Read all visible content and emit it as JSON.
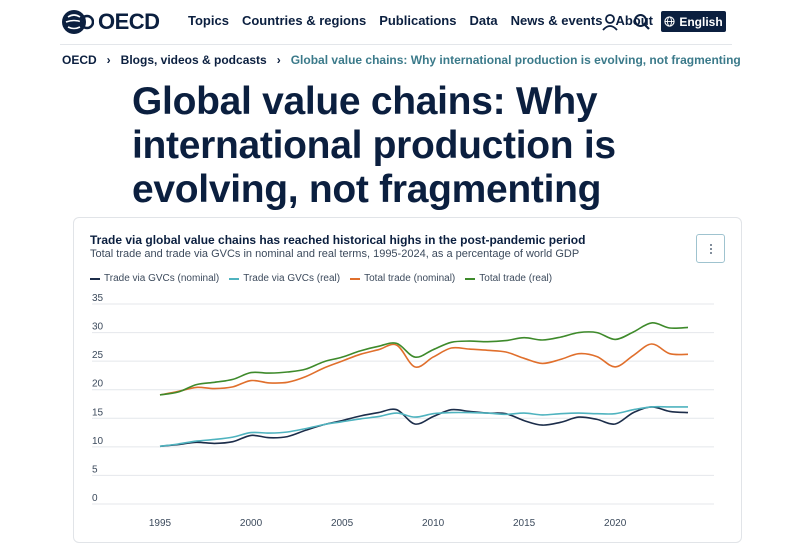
{
  "nav": {
    "logo_text": "OECD",
    "links": [
      "Topics",
      "Countries & regions",
      "Publications",
      "Data",
      "News & events",
      "About"
    ],
    "language_label": "English"
  },
  "breadcrumb": {
    "items": [
      "OECD",
      "Blogs, videos & podcasts"
    ],
    "current": "Global value chains: Why international production is evolving, not fragmenting"
  },
  "page_title": "Global value chains: Why international production is evolving, not fragmenting",
  "colors": {
    "navy": "#0b1f3f",
    "gvc_nominal": "#1c2d4a",
    "gvc_real": "#4fb3bf",
    "total_nominal": "#e06f2c",
    "total_real": "#3e8a2b"
  },
  "icons": {
    "user": "user-icon",
    "search": "search-icon",
    "globe": "globe-icon",
    "menu": "kebab-menu-icon"
  },
  "chart_data": {
    "type": "line",
    "title": "Trade via global value chains has reached historical highs in the post-pandemic period",
    "subtitle": "Total trade and trade via GVCs in nominal and real terms, 1995-2024, as a percentage of world GDP",
    "xlabel": "",
    "ylabel": "",
    "ylim": [
      0,
      35
    ],
    "xlim": [
      1995,
      2024
    ],
    "yticks": [
      0,
      5,
      10,
      15,
      20,
      25,
      30,
      35
    ],
    "xticks": [
      1995,
      2000,
      2005,
      2010,
      2015,
      2020
    ],
    "legend_position": "top-left",
    "grid": true,
    "x": [
      1995,
      1996,
      1997,
      1998,
      1999,
      2000,
      2001,
      2002,
      2003,
      2004,
      2005,
      2006,
      2007,
      2008,
      2009,
      2010,
      2011,
      2012,
      2013,
      2014,
      2015,
      2016,
      2017,
      2018,
      2019,
      2020,
      2021,
      2022,
      2023,
      2024
    ],
    "series": [
      {
        "name": "Trade via GVCs (nominal)",
        "color": "#1c2d4a",
        "values": [
          10.1,
          10.4,
          10.8,
          10.6,
          10.9,
          12.0,
          11.6,
          11.8,
          12.9,
          13.9,
          14.6,
          15.4,
          16.0,
          16.5,
          14.0,
          15.3,
          16.5,
          16.2,
          15.9,
          15.8,
          14.6,
          13.8,
          14.3,
          15.2,
          14.8,
          14.0,
          16.0,
          17.0,
          16.2,
          16.0
        ]
      },
      {
        "name": "Trade via GVCs (real)",
        "color": "#4fb3bf",
        "values": [
          10.1,
          10.5,
          11.0,
          11.3,
          11.7,
          12.5,
          12.4,
          12.6,
          13.2,
          13.9,
          14.4,
          14.9,
          15.3,
          15.9,
          15.2,
          15.8,
          16.0,
          16.0,
          15.9,
          15.7,
          15.9,
          15.6,
          15.8,
          15.9,
          15.8,
          15.8,
          16.5,
          17.0,
          17.0,
          17.0
        ]
      },
      {
        "name": "Total trade (nominal)",
        "color": "#e06f2c",
        "values": [
          19.1,
          19.7,
          20.4,
          20.2,
          20.5,
          21.6,
          21.2,
          21.3,
          22.3,
          23.8,
          25.0,
          26.2,
          27.0,
          27.8,
          24.0,
          25.7,
          27.3,
          27.1,
          26.9,
          26.6,
          25.5,
          24.6,
          25.3,
          26.3,
          25.8,
          24.0,
          26.0,
          28.0,
          26.3,
          26.2
        ]
      },
      {
        "name": "Total trade (real)",
        "color": "#3e8a2b",
        "values": [
          19.1,
          19.6,
          20.9,
          21.3,
          21.8,
          23.0,
          22.9,
          23.1,
          23.6,
          24.9,
          25.7,
          26.8,
          27.6,
          28.1,
          25.7,
          27.0,
          28.3,
          28.5,
          28.4,
          28.6,
          29.1,
          28.7,
          29.2,
          30.0,
          30.0,
          28.8,
          30.1,
          31.7,
          30.8,
          30.9
        ]
      }
    ]
  }
}
